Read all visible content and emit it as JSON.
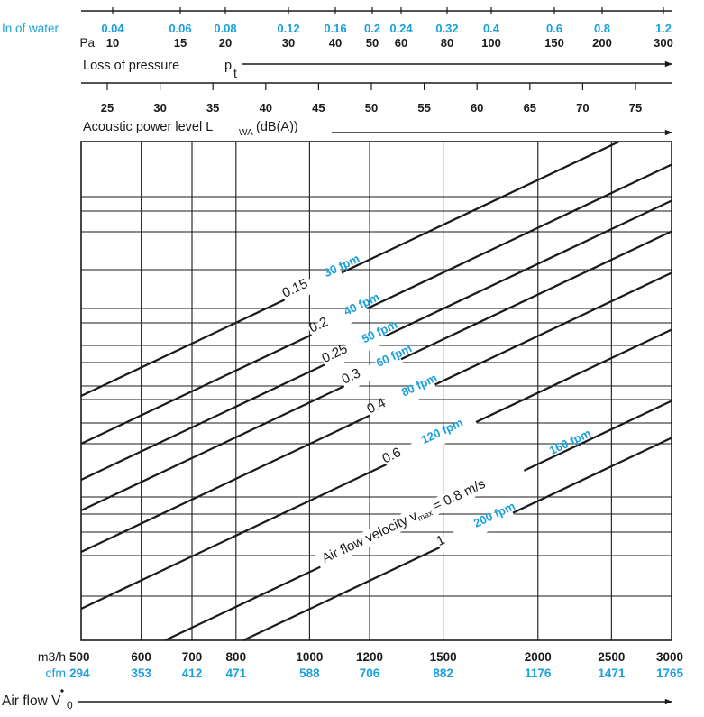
{
  "chart_data": {
    "type": "line",
    "colors": {
      "accent": "#1aa0dc",
      "ink": "#1a1a1a"
    },
    "top_axis": {
      "unit_water": "In of water",
      "unit_pa": "Pa",
      "ticks": [
        {
          "in": "0.04",
          "pa": "10"
        },
        {
          "in": "0.06",
          "pa": "15"
        },
        {
          "in": "0.08",
          "pa": "20"
        },
        {
          "in": "0.12",
          "pa": "30"
        },
        {
          "in": "0.16",
          "pa": "40"
        },
        {
          "in": "0.2",
          "pa": "50"
        },
        {
          "in": "0.24",
          "pa": "60"
        },
        {
          "in": "0.32",
          "pa": "80"
        },
        {
          "in": "0.4",
          "pa": "100"
        },
        {
          "in": "0.6",
          "pa": "150"
        },
        {
          "in": "0.8",
          "pa": "200"
        },
        {
          "in": "1.2",
          "pa": "300"
        }
      ],
      "label": "Loss of pressure",
      "symbol": "p",
      "symbol_sub": "t"
    },
    "acoustic_axis": {
      "ticks": [
        "25",
        "30",
        "35",
        "40",
        "45",
        "50",
        "55",
        "60",
        "65",
        "70",
        "75"
      ],
      "label_pre": "Acoustic power level  L",
      "label_sub": "WA",
      "label_post": " (dB(A))"
    },
    "x_axis": {
      "unit_m3h": "m3/h",
      "unit_cfm": "cfm",
      "ticks": [
        {
          "m3h": 500,
          "cfm": "294"
        },
        {
          "m3h": 600,
          "cfm": "353"
        },
        {
          "m3h": 700,
          "cfm": "412"
        },
        {
          "m3h": 800,
          "cfm": "471"
        },
        {
          "m3h": 1000,
          "cfm": "588"
        },
        {
          "m3h": 1200,
          "cfm": "706"
        },
        {
          "m3h": 1500,
          "cfm": "882"
        },
        {
          "m3h": 2000,
          "cfm": "1176"
        },
        {
          "m3h": 2500,
          "cfm": "1471"
        },
        {
          "m3h": 3000,
          "cfm": "1765"
        }
      ],
      "range": [
        500,
        3000
      ],
      "scale": "log",
      "label": "Air flow V",
      "label_sub": "0"
    },
    "series": [
      {
        "name": "0.15",
        "fpm": "30 fpm"
      },
      {
        "name": "0.2",
        "fpm": "40 fpm"
      },
      {
        "name": "0.25",
        "fpm": "50 fpm"
      },
      {
        "name": "0.3",
        "fpm": "60 fpm"
      },
      {
        "name": "0.4",
        "fpm": "80 fpm"
      },
      {
        "name": "0.6",
        "fpm": "120 fpm"
      },
      {
        "name": "0.8",
        "fpm": "160 fpm"
      },
      {
        "name": "1",
        "fpm": "200 fpm"
      }
    ],
    "velocity_label": "Air flow velocity  v",
    "velocity_sub": "max",
    "velocity_unit": "m/s",
    "grid": true
  }
}
